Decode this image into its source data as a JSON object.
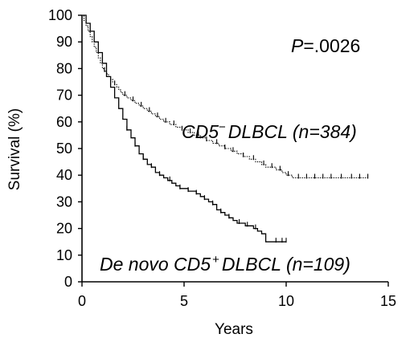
{
  "chart_data": {
    "type": "line",
    "xlabel": "Years",
    "ylabel": "Survival (%)",
    "xlim": [
      0,
      15
    ],
    "ylim": [
      0,
      100
    ],
    "xticks": [
      "0",
      "5",
      "10",
      "15"
    ],
    "yticks": [
      "0",
      "10",
      "20",
      "30",
      "40",
      "50",
      "60",
      "70",
      "80",
      "90",
      "100"
    ],
    "grid": false,
    "legend": "none",
    "annotations": {
      "pvalue_italic": "P",
      "pvalue_rest": "=.0026",
      "cd5neg_pre": "CD5",
      "cd5neg_sup": "−",
      "cd5neg_post": "DLBCL (n=384)",
      "cd5pos_pre": "De novo CD5",
      "cd5pos_sup": "+",
      "cd5pos_post": "DLBCL (n=109)"
    },
    "series": [
      {
        "key": "cd5_negative",
        "style": "dotted-step",
        "points": [
          [
            0,
            100
          ],
          [
            0.1,
            98
          ],
          [
            0.2,
            96
          ],
          [
            0.3,
            94
          ],
          [
            0.4,
            92
          ],
          [
            0.5,
            90
          ],
          [
            0.6,
            88
          ],
          [
            0.7,
            86
          ],
          [
            0.8,
            84
          ],
          [
            0.9,
            82
          ],
          [
            1.0,
            80
          ],
          [
            1.1,
            79
          ],
          [
            1.2,
            78
          ],
          [
            1.3,
            77
          ],
          [
            1.4,
            76
          ],
          [
            1.5,
            75
          ],
          [
            1.6,
            74
          ],
          [
            1.7,
            73
          ],
          [
            1.8,
            72
          ],
          [
            1.9,
            71
          ],
          [
            2.0,
            70
          ],
          [
            2.2,
            69
          ],
          [
            2.4,
            68
          ],
          [
            2.6,
            67
          ],
          [
            2.8,
            66
          ],
          [
            3.0,
            65
          ],
          [
            3.2,
            64
          ],
          [
            3.4,
            63
          ],
          [
            3.6,
            62
          ],
          [
            3.8,
            61
          ],
          [
            4.0,
            60
          ],
          [
            4.3,
            59
          ],
          [
            4.6,
            58
          ],
          [
            4.9,
            57
          ],
          [
            5.2,
            56
          ],
          [
            5.5,
            55
          ],
          [
            5.8,
            54
          ],
          [
            6.1,
            53
          ],
          [
            6.4,
            52
          ],
          [
            6.7,
            51
          ],
          [
            7.0,
            50
          ],
          [
            7.3,
            49
          ],
          [
            7.6,
            48
          ],
          [
            7.9,
            47
          ],
          [
            8.2,
            46
          ],
          [
            8.5,
            45
          ],
          [
            8.8,
            44
          ],
          [
            9.0,
            43
          ],
          [
            9.5,
            42
          ],
          [
            9.8,
            41
          ],
          [
            10.0,
            40
          ],
          [
            10.3,
            39
          ],
          [
            14.0,
            39
          ]
        ],
        "censored": [
          1.1,
          1.6,
          2.1,
          2.5,
          2.9,
          3.3,
          3.7,
          4.1,
          4.5,
          4.9,
          5.3,
          5.7,
          6.1,
          6.6,
          7.0,
          7.4,
          7.9,
          8.4,
          8.9,
          9.3,
          9.7,
          10.1,
          10.6,
          11.0,
          11.4,
          11.8,
          12.2,
          12.7,
          13.2,
          13.6,
          14.0
        ]
      },
      {
        "key": "cd5_positive",
        "style": "solid-step",
        "points": [
          [
            0,
            100
          ],
          [
            0.2,
            97
          ],
          [
            0.4,
            94
          ],
          [
            0.6,
            90
          ],
          [
            0.8,
            86
          ],
          [
            1.0,
            82
          ],
          [
            1.2,
            77
          ],
          [
            1.4,
            73
          ],
          [
            1.6,
            69
          ],
          [
            1.8,
            65
          ],
          [
            2.0,
            61
          ],
          [
            2.2,
            57
          ],
          [
            2.4,
            54
          ],
          [
            2.6,
            51
          ],
          [
            2.8,
            48
          ],
          [
            3.0,
            46
          ],
          [
            3.2,
            44
          ],
          [
            3.4,
            43
          ],
          [
            3.6,
            41
          ],
          [
            3.8,
            40
          ],
          [
            4.0,
            39
          ],
          [
            4.2,
            38
          ],
          [
            4.4,
            37
          ],
          [
            4.6,
            36
          ],
          [
            4.8,
            35
          ],
          [
            5.0,
            35
          ],
          [
            5.2,
            34
          ],
          [
            5.4,
            34
          ],
          [
            5.6,
            33
          ],
          [
            5.8,
            32
          ],
          [
            6.0,
            31
          ],
          [
            6.2,
            30
          ],
          [
            6.4,
            29
          ],
          [
            6.6,
            27
          ],
          [
            6.8,
            26
          ],
          [
            7.0,
            25
          ],
          [
            7.2,
            24
          ],
          [
            7.4,
            23
          ],
          [
            7.6,
            22
          ],
          [
            7.8,
            22
          ],
          [
            8.0,
            21
          ],
          [
            8.2,
            21
          ],
          [
            8.4,
            20
          ],
          [
            8.6,
            19
          ],
          [
            8.8,
            18
          ],
          [
            9.0,
            15
          ],
          [
            10.0,
            15
          ]
        ],
        "censored": [
          2.2,
          2.6,
          3.0,
          3.4,
          3.8,
          4.3,
          4.8,
          5.2,
          5.6,
          6.0,
          6.4,
          6.8,
          7.2,
          7.7,
          8.1,
          8.5,
          9.5,
          9.8,
          10.0
        ]
      }
    ]
  }
}
